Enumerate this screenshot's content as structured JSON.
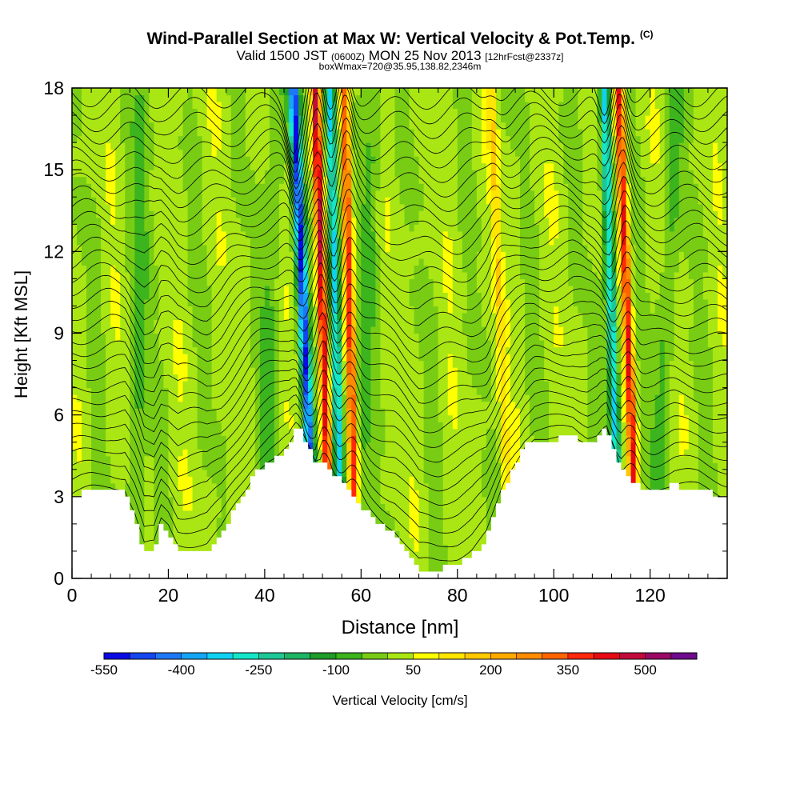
{
  "title": {
    "main": "Wind-Parallel Section at Max W: Vertical Velocity & Pot.Temp.",
    "copyright": "(C)",
    "valid_prefix": "Valid 1500 JST",
    "valid_utc": "(0600Z)",
    "valid_date": "MON 25 Nov 2013",
    "forecast": "[12hrFcst@2337z]",
    "box": "boxWmax=720@35.95,138.82,2346m"
  },
  "chart_data": {
    "type": "heatmap",
    "xlabel": "Distance [nm]",
    "ylabel": "Height [Kft MSL]",
    "xlim": [
      0,
      136
    ],
    "ylim": [
      0,
      18
    ],
    "x_ticks": [
      "0",
      "20",
      "40",
      "60",
      "80",
      "100",
      "120"
    ],
    "y_ticks": [
      "0",
      "3",
      "6",
      "9",
      "12",
      "15",
      "18"
    ],
    "colorbar": {
      "label": "Vertical Velocity [cm/s]",
      "tick_labels": [
        "-550",
        "-400",
        "-250",
        "-100",
        "50",
        "200",
        "350",
        "500"
      ],
      "levels": [
        -550,
        -500,
        -450,
        -400,
        -350,
        -300,
        -250,
        -200,
        -150,
        -100,
        -50,
        0,
        50,
        100,
        150,
        200,
        250,
        300,
        350,
        400,
        450,
        500,
        550
      ],
      "colors": [
        "#0a0ae6",
        "#1446f0",
        "#1e78f5",
        "#14a5f5",
        "#0fd2f0",
        "#14e6c8",
        "#1ec896",
        "#1eb464",
        "#1e9c28",
        "#3cb41e",
        "#78cd14",
        "#aae614",
        "#ffff00",
        "#ffe600",
        "#ffc800",
        "#ffaa00",
        "#ff8c00",
        "#ff6400",
        "#ff280a",
        "#e60a14",
        "#c30a3c",
        "#9b0a64",
        "#6e0a8c"
      ]
    },
    "terrain_kft": [
      [
        0,
        3.0
      ],
      [
        4,
        3.2
      ],
      [
        8,
        3.3
      ],
      [
        11,
        3.2
      ],
      [
        13,
        2.3
      ],
      [
        15,
        1.0
      ],
      [
        17,
        1.0
      ],
      [
        18.5,
        1.9
      ],
      [
        20,
        1.7
      ],
      [
        22,
        1.0
      ],
      [
        25,
        1.0
      ],
      [
        28,
        1.0
      ],
      [
        31,
        1.6
      ],
      [
        34,
        2.6
      ],
      [
        37,
        3.5
      ],
      [
        39,
        4.0
      ],
      [
        41,
        4.3
      ],
      [
        43,
        4.5
      ],
      [
        45,
        4.8
      ],
      [
        46.5,
        5.4
      ],
      [
        47.5,
        5.5
      ],
      [
        49,
        4.9
      ],
      [
        50.5,
        4.3
      ],
      [
        52,
        4.4
      ],
      [
        54,
        3.9
      ],
      [
        56,
        3.6
      ],
      [
        58,
        3.1
      ],
      [
        60,
        2.7
      ],
      [
        62,
        2.3
      ],
      [
        64,
        2.0
      ],
      [
        67,
        1.6
      ],
      [
        70,
        0.8
      ],
      [
        72,
        0.3
      ],
      [
        76,
        0.3
      ],
      [
        80,
        0.5
      ],
      [
        83,
        0.8
      ],
      [
        86,
        1.4
      ],
      [
        88,
        2.4
      ],
      [
        90,
        3.4
      ],
      [
        92,
        4.2
      ],
      [
        94,
        4.8
      ],
      [
        96,
        5.1
      ],
      [
        100,
        5.1
      ],
      [
        104,
        5.2
      ],
      [
        107,
        4.9
      ],
      [
        109,
        5.0
      ],
      [
        111,
        5.5
      ],
      [
        112.5,
        4.8
      ],
      [
        114,
        4.0
      ],
      [
        116,
        3.6
      ],
      [
        118,
        3.3
      ],
      [
        121,
        3.2
      ],
      [
        125,
        3.4
      ],
      [
        130,
        3.3
      ],
      [
        133,
        3.1
      ],
      [
        136,
        2.9
      ]
    ],
    "updraft_bands": [
      {
        "x_base_nm": 53,
        "x_top_nm": 50.5,
        "peak_cm_s": 450
      },
      {
        "x_base_nm": 58.5,
        "x_top_nm": 56.5,
        "peak_cm_s": 350
      },
      {
        "x_base_nm": 116.5,
        "x_top_nm": 113.5,
        "peak_cm_s": 400
      },
      {
        "x_base_nm": 90,
        "x_top_nm": 87,
        "peak_cm_s": 120
      }
    ],
    "downdraft_bands": [
      {
        "x_base_nm": 49.5,
        "x_top_nm": 46,
        "peak_cm_s": -500
      },
      {
        "x_base_nm": 55.5,
        "x_top_nm": 53.5,
        "peak_cm_s": -350
      },
      {
        "x_base_nm": 113,
        "x_top_nm": 110.5,
        "peak_cm_s": -350
      }
    ],
    "contour_variable": "Potential Temperature",
    "contour_count": 32
  }
}
